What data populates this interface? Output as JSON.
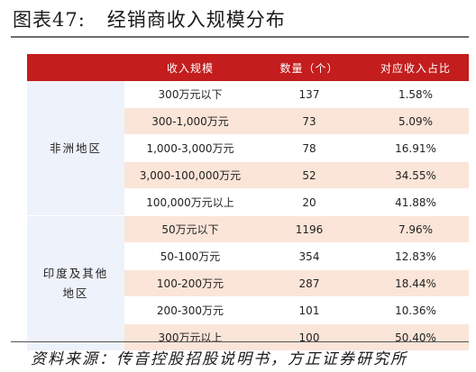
{
  "title": {
    "label": "图表47:",
    "text": "经销商收入规模分布"
  },
  "table": {
    "headers": [
      "收入规模",
      "数量（个）",
      "对应收入占比"
    ],
    "groups": [
      {
        "region": "非洲地区",
        "rows": [
          {
            "range": "300万元以下",
            "count": "137",
            "share": "1.58%"
          },
          {
            "range": "300-1,000万元",
            "count": "73",
            "share": "5.09%"
          },
          {
            "range": "1,000-3,000万元",
            "count": "78",
            "share": "16.91%"
          },
          {
            "range": "3,000-100,000万元",
            "count": "52",
            "share": "34.55%"
          },
          {
            "range": "100,000万元以上",
            "count": "20",
            "share": "41.88%"
          }
        ]
      },
      {
        "region_line1": "印度及其他",
        "region_line2": "地区",
        "rows": [
          {
            "range": "50万元以下",
            "count": "1196",
            "share": "7.96%"
          },
          {
            "range": "50-100万元",
            "count": "354",
            "share": "12.83%"
          },
          {
            "range": "100-200万元",
            "count": "287",
            "share": "18.44%"
          },
          {
            "range": "200-300万元",
            "count": "101",
            "share": "10.36%"
          },
          {
            "range": "300万元以上",
            "count": "100",
            "share": "50.40%"
          }
        ]
      }
    ]
  },
  "source": "资料来源：传音控股招股说明书，方正证券研究所"
}
